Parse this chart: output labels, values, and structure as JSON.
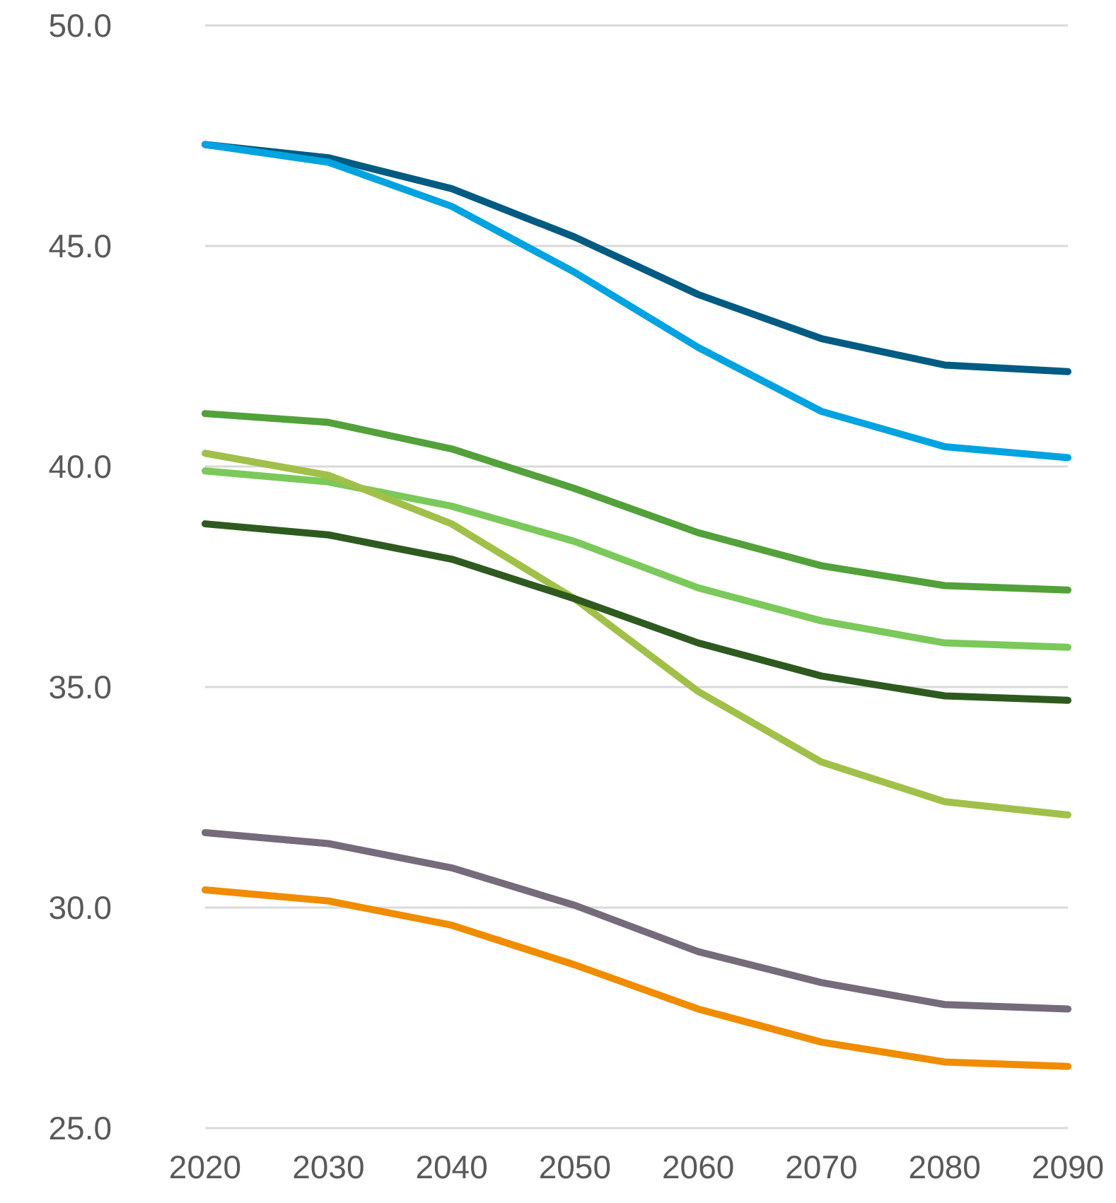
{
  "chart_data": {
    "type": "line",
    "categories": [
      "2020",
      "2030",
      "2040",
      "2050",
      "2060",
      "2070",
      "2080",
      "2090"
    ],
    "series": [
      {
        "color": "#005b82",
        "values": [
          47.3,
          47.0,
          46.3,
          45.2,
          43.9,
          42.9,
          42.3,
          42.15
        ]
      },
      {
        "color": "#00a3e0",
        "values": [
          47.3,
          46.9,
          45.9,
          44.4,
          42.7,
          41.25,
          40.45,
          40.2
        ]
      },
      {
        "color": "#52a13a",
        "values": [
          41.2,
          41.0,
          40.4,
          39.5,
          38.5,
          37.75,
          37.3,
          37.2
        ]
      },
      {
        "color": "#7ac95a",
        "values": [
          39.9,
          39.65,
          39.1,
          38.3,
          37.25,
          36.5,
          36.0,
          35.9
        ]
      },
      {
        "color": "#a1c04a",
        "values": [
          40.3,
          39.8,
          38.7,
          37.0,
          34.9,
          33.3,
          32.4,
          32.1
        ]
      },
      {
        "color": "#2e5a1f",
        "values": [
          38.7,
          38.45,
          37.9,
          37.0,
          36.0,
          35.25,
          34.8,
          34.7
        ]
      },
      {
        "color": "#756b7a",
        "values": [
          31.7,
          31.45,
          30.9,
          30.05,
          29.0,
          28.3,
          27.8,
          27.7
        ]
      },
      {
        "color": "#f08c00",
        "values": [
          30.4,
          30.15,
          29.6,
          28.7,
          27.7,
          26.95,
          26.5,
          26.4
        ]
      }
    ],
    "ylim": [
      25,
      50
    ],
    "yticks": [
      {
        "value": 25,
        "label": "25.0"
      },
      {
        "value": 30,
        "label": "30.0"
      },
      {
        "value": 35,
        "label": "35.0"
      },
      {
        "value": 40,
        "label": "40.0"
      },
      {
        "value": 45,
        "label": "45.0"
      },
      {
        "value": 50,
        "label": "50.0"
      }
    ],
    "grid": "y",
    "marker": "none",
    "line_style": "solid"
  }
}
